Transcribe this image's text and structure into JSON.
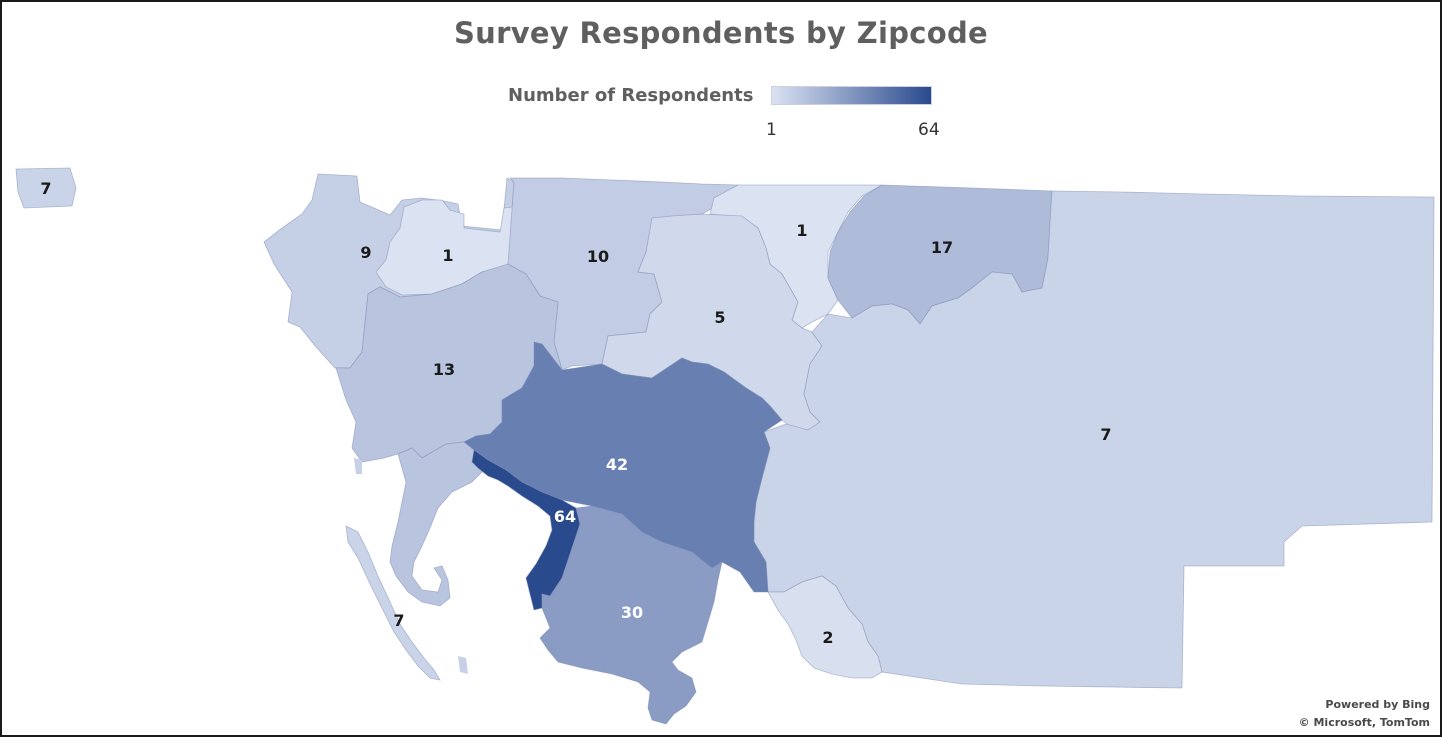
{
  "title": "Survey Respondents by Zipcode",
  "legend": {
    "label": "Number of Respondents",
    "min": "1",
    "max": "64",
    "color_low": "#dbe2f2",
    "color_high": "#2a4a8e"
  },
  "attribution": {
    "line1": "Powered by Bing",
    "line2": "© Microsoft, TomTom"
  },
  "zipcodes": [
    {
      "label": "7",
      "value": 7
    },
    {
      "label": "9",
      "value": 9
    },
    {
      "label": "1",
      "value": 1
    },
    {
      "label": "10",
      "value": 10
    },
    {
      "label": "1",
      "value": 1
    },
    {
      "label": "17",
      "value": 17
    },
    {
      "label": "5",
      "value": 5
    },
    {
      "label": "13",
      "value": 13
    },
    {
      "label": "42",
      "value": 42
    },
    {
      "label": "64",
      "value": 64
    },
    {
      "label": "30",
      "value": 30
    },
    {
      "label": "7",
      "value": 7
    },
    {
      "label": "2",
      "value": 2
    },
    {
      "label": "7",
      "value": 7
    }
  ]
}
